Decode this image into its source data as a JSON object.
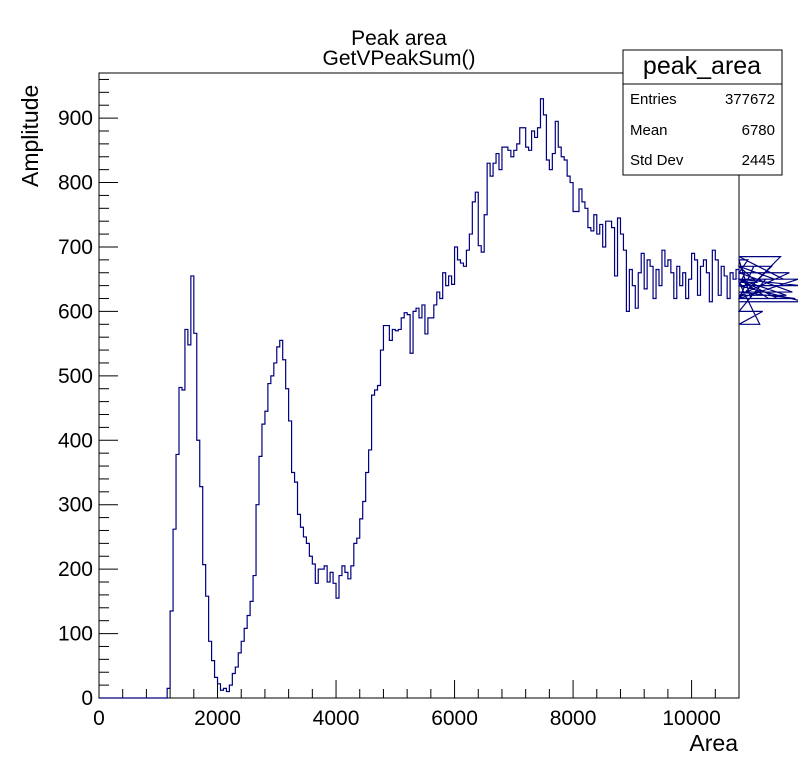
{
  "chart_data": {
    "type": "histogram",
    "title": "Peak area",
    "subtitle": "GetVPeakSum()",
    "xlabel": "Area",
    "ylabel": "Amplitude",
    "xlim": [
      0,
      10800
    ],
    "ylim": [
      0,
      970
    ],
    "x_ticks": [
      "0",
      "2000",
      "4000",
      "6000",
      "8000",
      "10000"
    ],
    "y_ticks": [
      "0",
      "100",
      "200",
      "300",
      "400",
      "500",
      "600",
      "700",
      "800",
      "900"
    ],
    "bin_width": 50,
    "bin_start": 0,
    "line_color": "#00007f",
    "values": [
      0,
      0,
      0,
      0,
      0,
      0,
      0,
      0,
      0,
      0,
      0,
      0,
      0,
      0,
      0,
      0,
      0,
      0,
      0,
      0,
      0,
      0,
      0,
      15,
      135,
      262,
      378,
      482,
      478,
      572,
      548,
      655,
      566,
      400,
      328,
      207,
      158,
      88,
      58,
      32,
      22,
      12,
      15,
      10,
      20,
      38,
      48,
      70,
      88,
      108,
      128,
      150,
      190,
      300,
      375,
      425,
      445,
      488,
      500,
      520,
      545,
      555,
      525,
      480,
      430,
      350,
      335,
      285,
      265,
      250,
      240,
      220,
      208,
      178,
      200,
      200,
      205,
      180,
      195,
      178,
      155,
      190,
      205,
      195,
      185,
      205,
      240,
      248,
      278,
      305,
      350,
      385,
      470,
      478,
      485,
      540,
      578,
      578,
      555,
      572,
      570,
      572,
      590,
      598,
      595,
      535,
      600,
      605,
      590,
      610,
      565,
      590,
      590,
      610,
      630,
      620,
      660,
      640,
      655,
      642,
      700,
      680,
      675,
      670,
      695,
      720,
      770,
      785,
      702,
      692,
      750,
      830,
      810,
      830,
      845,
      820,
      855,
      855,
      850,
      840,
      850,
      860,
      885,
      885,
      855,
      850,
      880,
      870,
      885,
      930,
      905,
      835,
      820,
      845,
      895,
      855,
      840,
      835,
      810,
      800,
      755,
      755,
      790,
      770,
      760,
      730,
      725,
      750,
      720,
      735,
      700,
      740,
      740,
      730,
      655,
      745,
      720,
      695,
      600,
      665,
      640,
      605,
      660,
      690,
      635,
      680,
      670,
      620,
      665,
      640,
      695,
      670,
      680,
      660,
      620,
      670,
      640,
      660,
      620,
      650,
      690,
      680,
      625,
      670,
      680,
      660,
      615,
      695,
      680,
      625,
      670,
      655,
      620,
      660,
      650,
      665,
      645,
      640,
      660,
      680,
      620,
      670,
      645,
      580,
      600,
      650,
      620,
      670,
      650,
      620,
      685,
      650,
      625,
      660,
      630,
      620,
      650,
      640,
      615
    ],
    "stats": {
      "name": "peak_area",
      "rows": [
        {
          "label": "Entries",
          "value": "377672"
        },
        {
          "label": "Mean",
          "value": "6780"
        },
        {
          "label": "Std Dev",
          "value": "2445"
        }
      ]
    }
  }
}
